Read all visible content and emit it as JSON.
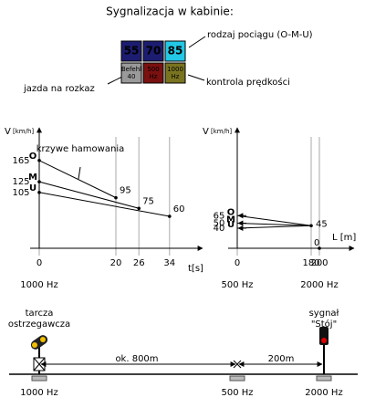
{
  "title": "Sygnalizacja w kabinie:",
  "cab_display": {
    "top": [
      {
        "label": "55",
        "color": "#1c1c70",
        "text_color": "#10104a"
      },
      {
        "label": "70",
        "color": "#1c1c70",
        "text_color": "#10104a"
      },
      {
        "label": "85",
        "color": "#22c8e6",
        "text_color": "#ffffff"
      }
    ],
    "bottom": [
      {
        "label": "Befehl 40",
        "color": "#9a9a9a",
        "text_color": "#000000"
      },
      {
        "label": "500 Hz",
        "color": "#7a1010",
        "text_color": "#3a0000"
      },
      {
        "label": "1000 Hz",
        "color": "#7a7420",
        "text_color": "#000000"
      }
    ]
  },
  "annotations": {
    "train_type": "rodzaj pociągu (O-M-U)",
    "order_run": "jazda na rozkaz",
    "speed_control": "kontrola prędkości"
  },
  "chart_time": {
    "y_label": "V",
    "y_unit": "[km/h]",
    "x_label": "t[s]",
    "note": "krzywe hamowania",
    "frequency": "1000 Hz",
    "xticks": [
      0,
      20,
      26,
      34
    ],
    "curves": [
      {
        "name": "O",
        "start": 165,
        "end": 95,
        "end_x": 20
      },
      {
        "name": "M",
        "start": 125,
        "end": 75,
        "end_x": 26
      },
      {
        "name": "U",
        "start": 105,
        "end": 60,
        "end_x": 34
      }
    ]
  },
  "chart_distance": {
    "y_label": "V",
    "y_unit": "[km/h]",
    "x_label": "L [m]",
    "frequencies": [
      "500 Hz",
      "2000 Hz"
    ],
    "xticks": [
      0,
      180,
      200
    ],
    "curves": [
      {
        "name": "O",
        "start": 65
      },
      {
        "name": "M",
        "start": 50
      },
      {
        "name": "U",
        "start": 40
      }
    ],
    "target": 45,
    "target_x": 180,
    "stop": 0,
    "stop_x": 200
  },
  "track": {
    "warning_signal": "tarcza ostrzegawcza",
    "stop_signal": "sygnał \"Stój\"",
    "distance_1": "ok. 800m",
    "distance_2": "200m",
    "balises": [
      "1000 Hz",
      "500 Hz",
      "2000 Hz"
    ]
  }
}
